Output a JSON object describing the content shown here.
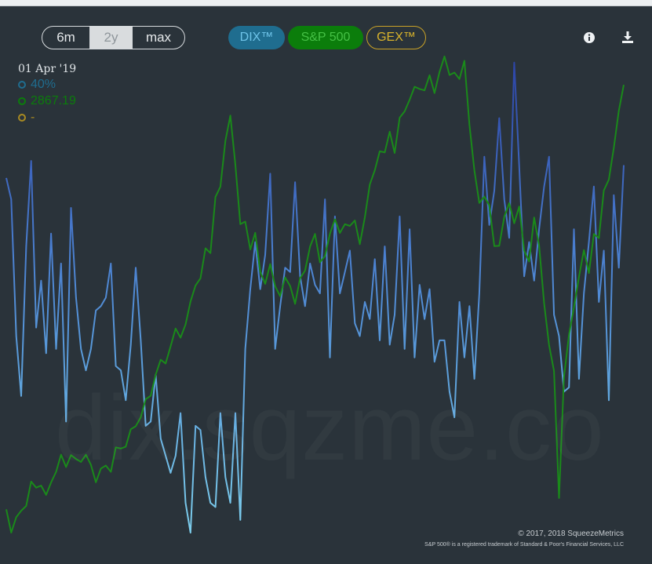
{
  "controls": {
    "ranges": [
      "6m",
      "2y",
      "max"
    ],
    "active_range": "2y",
    "series_buttons": [
      "DIX™",
      "S&P 500",
      "GEX™"
    ],
    "info_icon": "info-icon",
    "download_icon": "download-icon"
  },
  "tooltip": {
    "date": "01 Apr '19",
    "dix": "40%",
    "spx": "2867.19",
    "gex": "-"
  },
  "watermark": "dix.sqzme.co",
  "credits": {
    "copyright": "© 2017, 2018 SqueezeMetrics",
    "trademark": "S&P 500® is a registered trademark of Standard & Poor's Financial Services, LLC"
  },
  "colors": {
    "background": "#2a333a",
    "dix_high": "#2a3fa3",
    "dix_mid": "#4a7fd0",
    "dix_low": "#78c8ea",
    "spx": "#1a8a1a",
    "gex": "#c9a227"
  },
  "chart_data": {
    "type": "line",
    "title": "",
    "xlabel": "",
    "ylabel": "",
    "grid": false,
    "x_range": [
      "2017-04",
      "2019-04"
    ],
    "series": [
      {
        "name": "DIX™",
        "unit": "%",
        "ylim": [
          37,
          48.6
        ],
        "values": [
          45.5,
          45.0,
          41.8,
          40.4,
          43.9,
          45.9,
          42.0,
          43.1,
          41.4,
          44.2,
          41.5,
          43.5,
          39.8,
          44.8,
          42.7,
          41.5,
          41.0,
          41.5,
          42.4,
          42.5,
          42.7,
          43.5,
          41.1,
          41.0,
          40.3,
          41.6,
          43.4,
          41.7,
          39.7,
          39.8,
          40.9,
          39.4,
          39.0,
          38.6,
          39.0,
          40.0,
          37.9,
          37.2,
          39.7,
          39.6,
          38.5,
          37.9,
          37.8,
          40.0,
          38.5,
          37.9,
          40.0,
          37.5,
          41.5,
          42.9,
          44.0,
          42.9,
          43.7,
          45.6,
          41.5,
          42.5,
          43.4,
          43.3,
          45.4,
          43.2,
          42.5,
          43.5,
          43.0,
          42.8,
          45.0,
          41.3,
          44.6,
          42.8,
          43.3,
          43.8,
          42.1,
          41.8,
          42.6,
          42.2,
          43.6,
          41.7,
          43.9,
          41.6,
          42.3,
          44.6,
          41.5,
          44.3,
          41.3,
          43.0,
          42.2,
          42.9,
          41.2,
          41.7,
          41.7,
          40.5,
          39.9,
          42.6,
          41.3,
          42.5,
          40.8,
          42.8,
          46.0,
          44.4,
          45.2,
          46.9,
          45.0,
          44.1,
          48.2,
          45.8,
          43.2,
          44.0,
          43.1,
          44.3,
          45.3,
          46.0,
          42.3,
          41.8,
          40.5,
          40.6,
          44.3,
          40.8,
          42.8,
          44.0,
          45.3,
          42.6,
          43.8,
          40.3,
          45.1,
          43.4,
          45.8
        ]
      },
      {
        "name": "S&P 500",
        "unit": "index points",
        "ylim": [
          2350,
          2940
        ],
        "values": [
          2388.0,
          2360.3,
          2378.7,
          2386.3,
          2392.0,
          2421.0,
          2413.8,
          2416.3,
          2405.2,
          2419.9,
          2432.6,
          2453.1,
          2438.3,
          2452.5,
          2447.9,
          2444.4,
          2453.0,
          2440.9,
          2420.2,
          2436.5,
          2440.1,
          2432.6,
          2461.7,
          2460.3,
          2462.6,
          2483.3,
          2486.9,
          2497.5,
          2519.1,
          2523.2,
          2548.1,
          2566.0,
          2561.5,
          2581.8,
          2603.2,
          2592.3,
          2607.9,
          2635.3,
          2654.3,
          2662.9,
          2698.7,
          2692.9,
          2759.7,
          2772.0,
          2826.7,
          2856.6,
          2798.1,
          2727.3,
          2730.4,
          2697.2,
          2717.1,
          2670.7,
          2656.3,
          2679.9,
          2653.4,
          2641.6,
          2664.0,
          2653.9,
          2632.6,
          2663.1,
          2672.1,
          2700.7,
          2715.8,
          2682.0,
          2689.3,
          2715.9,
          2733.1,
          2716.9,
          2727.3,
          2725.3,
          2731.7,
          2703.5,
          2735.4,
          2774.5,
          2791.5,
          2814.1,
          2812.8,
          2837.4,
          2812.1,
          2854.1,
          2861.6,
          2875.4,
          2890.9,
          2888.3,
          2886.6,
          2904.6,
          2883.4,
          2908.5,
          2927.0,
          2904.9,
          2907.8,
          2900.1,
          2921.8,
          2845.9,
          2791.6,
          2752.5,
          2760.2,
          2749.8,
          2701.2,
          2701.7,
          2736.0,
          2752.4,
          2728.5,
          2748.3,
          2695.7,
          2683.0,
          2735.3,
          2702.0,
          2633.2,
          2583.6,
          2552.7,
          2401.4,
          2545.4,
          2595.7,
          2628.2,
          2664.6,
          2696.5,
          2669.2,
          2715.7,
          2710.8,
          2767.5,
          2780.5,
          2818.1,
          2862.2,
          2893.1
        ]
      },
      {
        "name": "GEX™",
        "values": []
      }
    ]
  }
}
